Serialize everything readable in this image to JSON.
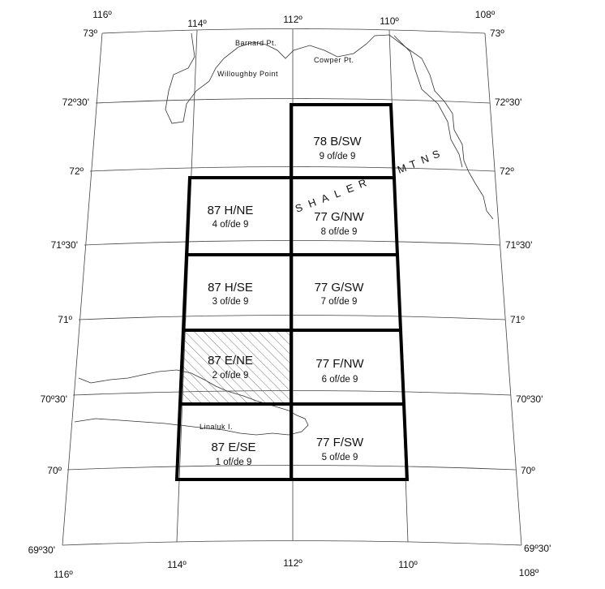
{
  "longitude_labels_top": [
    "116º",
    "114º",
    "112º",
    "110º",
    "108º"
  ],
  "longitude_labels_bottom": [
    "116º",
    "114º",
    "112º",
    "110º",
    "108º"
  ],
  "latitude_labels_left": [
    "73º",
    "72º30'",
    "72º",
    "71º30'",
    "71º",
    "70º30'",
    "70º",
    "69º30'"
  ],
  "latitude_labels_right": [
    "73º",
    "72º30'",
    "72º",
    "71º30'",
    "71º",
    "70º30'",
    "70º",
    "69º30'"
  ],
  "places": {
    "barnard": "Barnard Pt.",
    "cowper": "Cowper Pt.",
    "willoughby": "Willoughby Point",
    "linaluk": "Linaluk I."
  },
  "mountains": [
    "S",
    "H",
    "A",
    "L",
    "E",
    "R",
    "M",
    "T",
    "N",
    "S"
  ],
  "sheets": [
    {
      "name": "78 B/SW",
      "number": "9 of/de 9",
      "hatched": false
    },
    {
      "name": "87 H/NE",
      "number": "4 of/de 9",
      "hatched": false
    },
    {
      "name": "77 G/NW",
      "number": "8 of/de 9",
      "hatched": false
    },
    {
      "name": "87 H/SE",
      "number": "3 of/de 9",
      "hatched": false
    },
    {
      "name": "77 G/SW",
      "number": "7 of/de 9",
      "hatched": false
    },
    {
      "name": "87 E/NE",
      "number": "2 of/de 9",
      "hatched": true
    },
    {
      "name": "77 F/NW",
      "number": "6 of/de 9",
      "hatched": false
    },
    {
      "name": "87 E/SE",
      "number": "1 of/de 9",
      "hatched": false
    },
    {
      "name": "77 F/SW",
      "number": "5 of/de 9",
      "hatched": false
    }
  ],
  "colors": {
    "ink": "#000000",
    "coast": "#333333",
    "background": "#ffffff"
  }
}
